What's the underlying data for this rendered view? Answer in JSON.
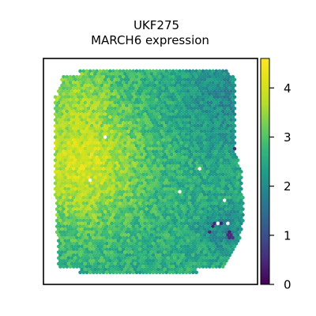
{
  "chart_data": {
    "type": "heatmap",
    "title_line1": "UKF275",
    "title_line2": "MARCH6 expression",
    "colormap": "viridis",
    "colorbar": {
      "range": [
        0,
        4.6
      ],
      "ticks": [
        0,
        1,
        2,
        3,
        4
      ],
      "tick_labels": [
        "0",
        "1",
        "2",
        "3",
        "4"
      ]
    },
    "axes_visible": false,
    "grid": false,
    "pattern": "Hexagonal spot map of a tissue section; high expression (~3.5–4.4) concentrated on the left/upper-left region, moderate (~2.3–3) in the center and lower part, lower (~1.5–2.3) toward the upper-right and right edge, with a few very low (~0–0.8) spots near the lower-right.",
    "value_range": [
      0,
      4.6
    ]
  }
}
